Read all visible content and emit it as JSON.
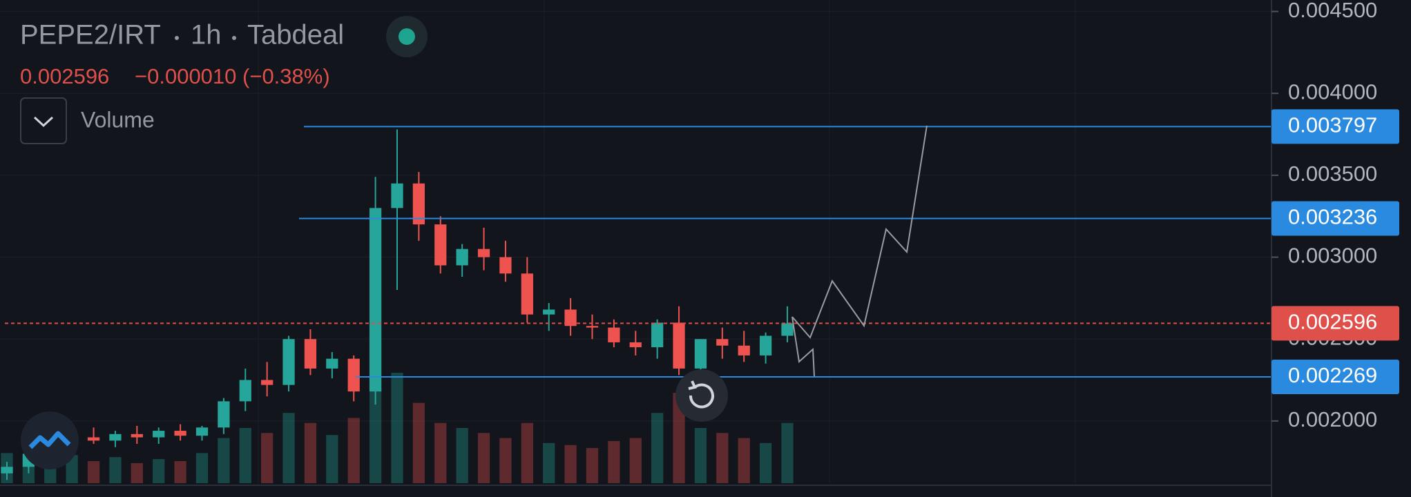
{
  "chart_data": {
    "type": "candlestick",
    "symbol": "PEPE2/IRT",
    "interval": "1h",
    "exchange": "Tabdeal",
    "last_price": "0.002596",
    "change": "−0.000010 (−0.38%)",
    "volume_label": "Volume",
    "up_color": "#26a69a",
    "down_color": "#ef5350",
    "ylim": [
      0.00162,
      0.00457
    ],
    "yticks": [
      {
        "value": 0.002,
        "label": "0.002000"
      },
      {
        "value": 0.0025,
        "label": "0.002500"
      },
      {
        "value": 0.003,
        "label": "0.003000"
      },
      {
        "value": 0.0035,
        "label": "0.003500"
      },
      {
        "value": 0.004,
        "label": "0.004000"
      },
      {
        "value": 0.0045,
        "label": "0.004500"
      }
    ],
    "open": [
      0.00168,
      0.00172,
      0.0018,
      0.00186,
      0.0019,
      0.00188,
      0.00192,
      0.0019,
      0.00194,
      0.00191,
      0.00196,
      0.00212,
      0.00225,
      0.00222,
      0.0025,
      0.00232,
      0.00238,
      0.00218,
      0.0033,
      0.00345,
      0.0032,
      0.00295,
      0.00305,
      0.003,
      0.0029,
      0.00265,
      0.00268,
      0.00258,
      0.00257,
      0.00248,
      0.00245,
      0.0026,
      0.00232,
      0.0025,
      0.00246,
      0.0024,
      0.00252
    ],
    "high": [
      0.00175,
      0.00184,
      0.0019,
      0.00194,
      0.00196,
      0.00194,
      0.00197,
      0.00196,
      0.00198,
      0.00197,
      0.00214,
      0.00232,
      0.00236,
      0.00252,
      0.00256,
      0.00242,
      0.0024,
      0.00349,
      0.00378,
      0.00352,
      0.00325,
      0.00308,
      0.00318,
      0.0031,
      0.003,
      0.00272,
      0.00275,
      0.00265,
      0.00262,
      0.00255,
      0.00262,
      0.0027,
      0.0025,
      0.00257,
      0.00255,
      0.00254,
      0.0027
    ],
    "low": [
      0.00164,
      0.00168,
      0.00176,
      0.00182,
      0.00186,
      0.00184,
      0.00186,
      0.00186,
      0.00188,
      0.00188,
      0.00192,
      0.00206,
      0.00215,
      0.00218,
      0.00228,
      0.00226,
      0.00212,
      0.0021,
      0.0028,
      0.0031,
      0.0029,
      0.00288,
      0.00292,
      0.00285,
      0.0026,
      0.00255,
      0.00252,
      0.0025,
      0.00245,
      0.0024,
      0.00238,
      0.00228,
      0.00228,
      0.00238,
      0.00236,
      0.00235,
      0.00248
    ],
    "close": [
      0.00172,
      0.0018,
      0.00186,
      0.0019,
      0.00188,
      0.00192,
      0.0019,
      0.00194,
      0.00191,
      0.00196,
      0.00212,
      0.00225,
      0.00222,
      0.0025,
      0.00232,
      0.00238,
      0.00218,
      0.0033,
      0.00345,
      0.0032,
      0.00295,
      0.00305,
      0.003,
      0.0029,
      0.00265,
      0.00268,
      0.00258,
      0.00257,
      0.00248,
      0.00245,
      0.0026,
      0.00232,
      0.0025,
      0.00246,
      0.0024,
      0.00252,
      0.002596
    ],
    "volume": [
      30,
      25,
      35,
      28,
      22,
      26,
      20,
      24,
      22,
      30,
      45,
      55,
      50,
      70,
      60,
      48,
      65,
      95,
      110,
      80,
      60,
      55,
      50,
      45,
      60,
      40,
      38,
      35,
      42,
      45,
      70,
      90,
      55,
      50,
      45,
      40,
      60
    ],
    "price_lines": [
      {
        "value": 0.003797,
        "color": "#2a8ae0"
      },
      {
        "value": 0.003236,
        "color": "#2a8ae0"
      },
      {
        "value": 0.002596,
        "color": "#e0504b"
      },
      {
        "value": 0.002269,
        "color": "#2a8ae0"
      }
    ]
  }
}
